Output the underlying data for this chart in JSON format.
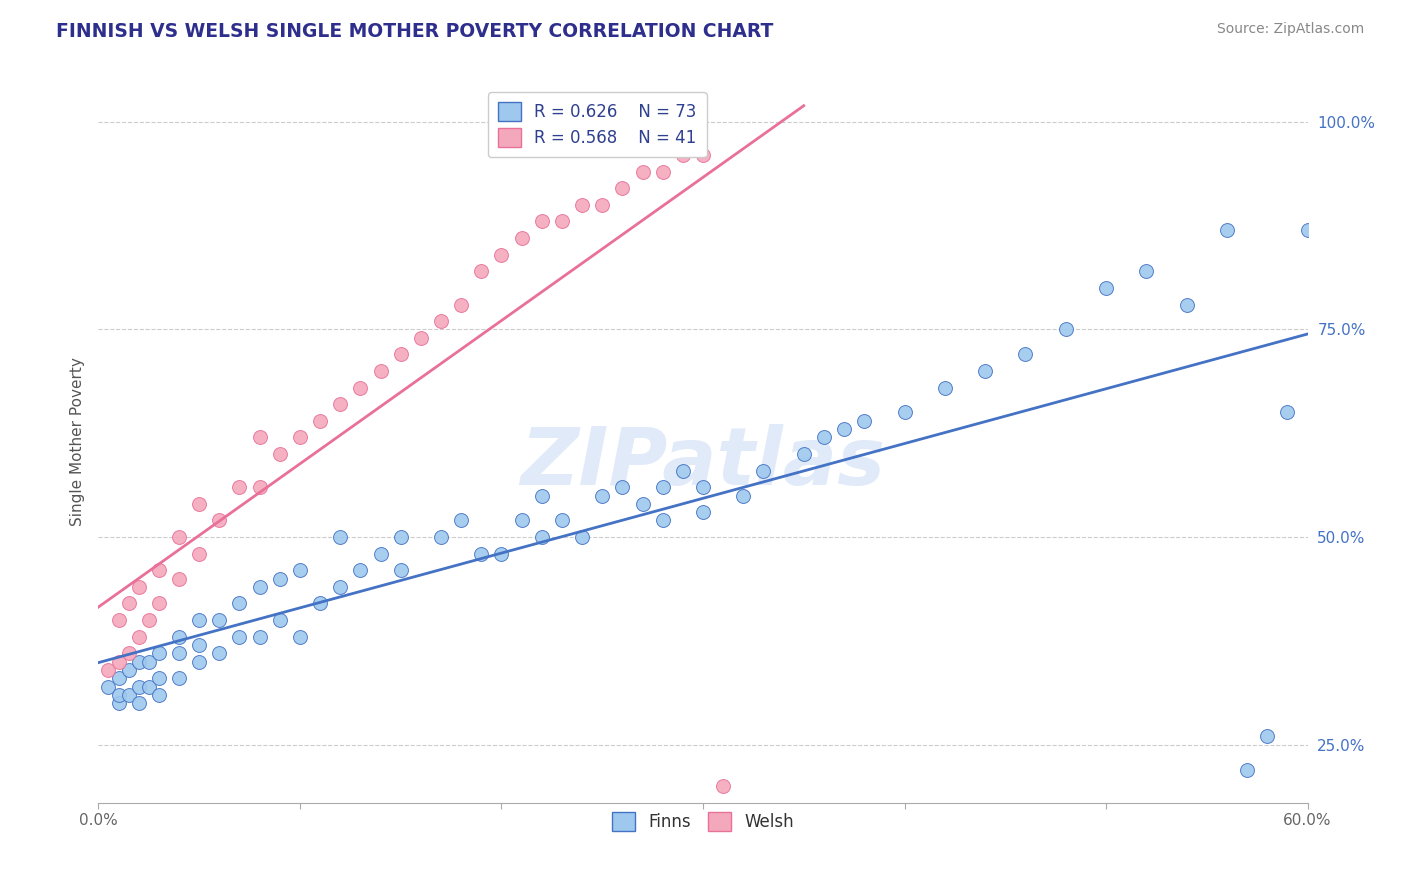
{
  "title": "FINNISH VS WELSH SINGLE MOTHER POVERTY CORRELATION CHART",
  "source": "Source: ZipAtlas.com",
  "ylabel": "Single Mother Poverty",
  "xlim": [
    0.0,
    0.6
  ],
  "ylim": [
    0.18,
    1.05
  ],
  "xtick_labels_bottom": [
    "0.0%",
    "60.0%"
  ],
  "xtick_vals_bottom": [
    0.0,
    0.6
  ],
  "ytick_labels": [
    "25.0%",
    "50.0%",
    "75.0%",
    "100.0%"
  ],
  "ytick_vals": [
    0.25,
    0.5,
    0.75,
    1.0
  ],
  "R_finns": 0.626,
  "N_finns": 73,
  "R_welsh": 0.568,
  "N_welsh": 41,
  "color_finns": "#9EC8EE",
  "color_welsh": "#F4A8BC",
  "color_line_finns": "#4472C4",
  "color_line_welsh": "#E87099",
  "background_color": "#FFFFFF",
  "grid_color": "#CCCCCC",
  "title_color": "#2E2E8C",
  "legend_text_color": "#2E4090",
  "right_tick_color": "#4472C4",
  "finns_x": [
    0.005,
    0.01,
    0.01,
    0.01,
    0.015,
    0.015,
    0.02,
    0.02,
    0.02,
    0.025,
    0.025,
    0.03,
    0.03,
    0.03,
    0.04,
    0.04,
    0.04,
    0.05,
    0.05,
    0.05,
    0.06,
    0.06,
    0.07,
    0.07,
    0.08,
    0.08,
    0.09,
    0.09,
    0.1,
    0.1,
    0.11,
    0.12,
    0.12,
    0.13,
    0.14,
    0.15,
    0.15,
    0.17,
    0.18,
    0.19,
    0.2,
    0.21,
    0.22,
    0.22,
    0.23,
    0.24,
    0.25,
    0.26,
    0.27,
    0.28,
    0.28,
    0.29,
    0.3,
    0.3,
    0.32,
    0.33,
    0.35,
    0.36,
    0.37,
    0.38,
    0.4,
    0.42,
    0.44,
    0.46,
    0.48,
    0.5,
    0.52,
    0.54,
    0.56,
    0.57,
    0.58,
    0.59,
    0.6
  ],
  "finns_y": [
    0.32,
    0.3,
    0.31,
    0.33,
    0.31,
    0.34,
    0.3,
    0.32,
    0.35,
    0.32,
    0.35,
    0.31,
    0.33,
    0.36,
    0.33,
    0.36,
    0.38,
    0.35,
    0.37,
    0.4,
    0.36,
    0.4,
    0.38,
    0.42,
    0.38,
    0.44,
    0.4,
    0.45,
    0.38,
    0.46,
    0.42,
    0.44,
    0.5,
    0.46,
    0.48,
    0.46,
    0.5,
    0.5,
    0.52,
    0.48,
    0.48,
    0.52,
    0.5,
    0.55,
    0.52,
    0.5,
    0.55,
    0.56,
    0.54,
    0.52,
    0.56,
    0.58,
    0.53,
    0.56,
    0.55,
    0.58,
    0.6,
    0.62,
    0.63,
    0.64,
    0.65,
    0.68,
    0.7,
    0.72,
    0.75,
    0.8,
    0.82,
    0.78,
    0.87,
    0.22,
    0.26,
    0.65,
    0.87
  ],
  "welsh_x": [
    0.005,
    0.01,
    0.01,
    0.015,
    0.015,
    0.02,
    0.02,
    0.025,
    0.03,
    0.03,
    0.04,
    0.04,
    0.05,
    0.05,
    0.06,
    0.07,
    0.08,
    0.08,
    0.09,
    0.1,
    0.11,
    0.12,
    0.13,
    0.14,
    0.15,
    0.16,
    0.17,
    0.18,
    0.19,
    0.2,
    0.21,
    0.22,
    0.23,
    0.24,
    0.25,
    0.26,
    0.27,
    0.28,
    0.29,
    0.3,
    0.31
  ],
  "welsh_y": [
    0.34,
    0.35,
    0.4,
    0.36,
    0.42,
    0.38,
    0.44,
    0.4,
    0.42,
    0.46,
    0.45,
    0.5,
    0.48,
    0.54,
    0.52,
    0.56,
    0.56,
    0.62,
    0.6,
    0.62,
    0.64,
    0.66,
    0.68,
    0.7,
    0.72,
    0.74,
    0.76,
    0.78,
    0.82,
    0.84,
    0.86,
    0.88,
    0.88,
    0.9,
    0.9,
    0.92,
    0.94,
    0.94,
    0.96,
    0.96,
    0.2
  ]
}
